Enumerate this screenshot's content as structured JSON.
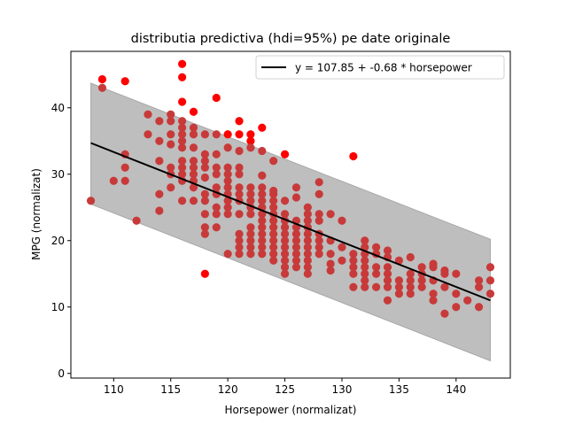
{
  "chart_data": {
    "type": "scatter",
    "title": "distributia predictiva (hdi=95%) pe date originale",
    "xlabel": "Horsepower (normalizat)",
    "ylabel": "MPG (normalizat)",
    "xlim": [
      106.25,
      144.75
    ],
    "ylim": [
      -0.7,
      48.5
    ],
    "xticks": [
      110,
      115,
      120,
      125,
      130,
      135,
      140
    ],
    "yticks": [
      0,
      10,
      20,
      30,
      40
    ],
    "grid": false,
    "legend": {
      "position": "top-right",
      "entries": [
        "y = 107.85 + -0.68 * horsepower"
      ]
    },
    "colors": {
      "points": "#ff0000",
      "band": "#bebebe",
      "band_edge": "#a8a8a8",
      "line": "#000000"
    },
    "regression": {
      "intercept": 107.85,
      "slope": -0.68,
      "x_range": [
        108,
        143
      ],
      "y_start": 34.7,
      "y_end": 11.0
    },
    "hdi_band": {
      "x": [
        108,
        143
      ],
      "upper": [
        43.7,
        20.2
      ],
      "lower": [
        25.5,
        1.9
      ]
    },
    "points": [
      {
        "x": 108,
        "y": 26
      },
      {
        "x": 109,
        "y": 43
      },
      {
        "x": 109,
        "y": 44.3
      },
      {
        "x": 110,
        "y": 29
      },
      {
        "x": 111,
        "y": 44
      },
      {
        "x": 111,
        "y": 33
      },
      {
        "x": 111,
        "y": 31
      },
      {
        "x": 111,
        "y": 29
      },
      {
        "x": 112,
        "y": 23
      },
      {
        "x": 113,
        "y": 39
      },
      {
        "x": 113,
        "y": 36
      },
      {
        "x": 114,
        "y": 38
      },
      {
        "x": 114,
        "y": 35
      },
      {
        "x": 114,
        "y": 32
      },
      {
        "x": 114,
        "y": 27
      },
      {
        "x": 114,
        "y": 24.5
      },
      {
        "x": 115,
        "y": 39
      },
      {
        "x": 115,
        "y": 38
      },
      {
        "x": 115,
        "y": 36
      },
      {
        "x": 115,
        "y": 34.5
      },
      {
        "x": 115,
        "y": 31
      },
      {
        "x": 115,
        "y": 30
      },
      {
        "x": 115,
        "y": 28
      },
      {
        "x": 116,
        "y": 46.6
      },
      {
        "x": 116,
        "y": 44.6
      },
      {
        "x": 116,
        "y": 40.9
      },
      {
        "x": 116,
        "y": 38
      },
      {
        "x": 116,
        "y": 37
      },
      {
        "x": 116,
        "y": 36
      },
      {
        "x": 116,
        "y": 35
      },
      {
        "x": 116,
        "y": 34
      },
      {
        "x": 116,
        "y": 32
      },
      {
        "x": 116,
        "y": 31
      },
      {
        "x": 116,
        "y": 30
      },
      {
        "x": 116,
        "y": 29
      },
      {
        "x": 116,
        "y": 26
      },
      {
        "x": 117,
        "y": 39.4
      },
      {
        "x": 117,
        "y": 37
      },
      {
        "x": 117,
        "y": 36
      },
      {
        "x": 117,
        "y": 34
      },
      {
        "x": 117,
        "y": 32
      },
      {
        "x": 117,
        "y": 31
      },
      {
        "x": 117,
        "y": 30
      },
      {
        "x": 117,
        "y": 29
      },
      {
        "x": 117,
        "y": 28
      },
      {
        "x": 117,
        "y": 26
      },
      {
        "x": 118,
        "y": 36
      },
      {
        "x": 118,
        "y": 33
      },
      {
        "x": 118,
        "y": 32
      },
      {
        "x": 118,
        "y": 31
      },
      {
        "x": 118,
        "y": 29.5
      },
      {
        "x": 118,
        "y": 27
      },
      {
        "x": 118,
        "y": 26
      },
      {
        "x": 118,
        "y": 24
      },
      {
        "x": 118,
        "y": 22
      },
      {
        "x": 118,
        "y": 21
      },
      {
        "x": 118,
        "y": 15
      },
      {
        "x": 119,
        "y": 41.5
      },
      {
        "x": 119,
        "y": 36
      },
      {
        "x": 119,
        "y": 33
      },
      {
        "x": 119,
        "y": 31
      },
      {
        "x": 119,
        "y": 30
      },
      {
        "x": 119,
        "y": 28
      },
      {
        "x": 119,
        "y": 27
      },
      {
        "x": 119,
        "y": 25
      },
      {
        "x": 119,
        "y": 24
      },
      {
        "x": 119,
        "y": 22
      },
      {
        "x": 120,
        "y": 36
      },
      {
        "x": 120,
        "y": 34
      },
      {
        "x": 120,
        "y": 31
      },
      {
        "x": 120,
        "y": 30
      },
      {
        "x": 120,
        "y": 29
      },
      {
        "x": 120,
        "y": 28
      },
      {
        "x": 120,
        "y": 27
      },
      {
        "x": 120,
        "y": 26
      },
      {
        "x": 120,
        "y": 25
      },
      {
        "x": 120,
        "y": 24
      },
      {
        "x": 120,
        "y": 18
      },
      {
        "x": 121,
        "y": 38
      },
      {
        "x": 121,
        "y": 36
      },
      {
        "x": 121,
        "y": 33.5
      },
      {
        "x": 121,
        "y": 31
      },
      {
        "x": 121,
        "y": 30
      },
      {
        "x": 121,
        "y": 28
      },
      {
        "x": 121,
        "y": 27
      },
      {
        "x": 121,
        "y": 26
      },
      {
        "x": 121,
        "y": 24
      },
      {
        "x": 121,
        "y": 21
      },
      {
        "x": 121,
        "y": 20
      },
      {
        "x": 121,
        "y": 19
      },
      {
        "x": 121,
        "y": 18
      },
      {
        "x": 122,
        "y": 36
      },
      {
        "x": 122,
        "y": 35
      },
      {
        "x": 122,
        "y": 34
      },
      {
        "x": 122,
        "y": 28
      },
      {
        "x": 122,
        "y": 27
      },
      {
        "x": 122,
        "y": 26
      },
      {
        "x": 122,
        "y": 25
      },
      {
        "x": 122,
        "y": 24
      },
      {
        "x": 122,
        "y": 22
      },
      {
        "x": 122,
        "y": 21
      },
      {
        "x": 122,
        "y": 20
      },
      {
        "x": 122,
        "y": 19
      },
      {
        "x": 122,
        "y": 18
      },
      {
        "x": 123,
        "y": 37
      },
      {
        "x": 123,
        "y": 33.5
      },
      {
        "x": 123,
        "y": 29.8
      },
      {
        "x": 123,
        "y": 28
      },
      {
        "x": 123,
        "y": 27
      },
      {
        "x": 123,
        "y": 26
      },
      {
        "x": 123,
        "y": 25
      },
      {
        "x": 123,
        "y": 24
      },
      {
        "x": 123,
        "y": 23
      },
      {
        "x": 123,
        "y": 22
      },
      {
        "x": 123,
        "y": 21
      },
      {
        "x": 123,
        "y": 20
      },
      {
        "x": 123,
        "y": 19
      },
      {
        "x": 123,
        "y": 18
      },
      {
        "x": 124,
        "y": 32
      },
      {
        "x": 124,
        "y": 27.5
      },
      {
        "x": 124,
        "y": 27
      },
      {
        "x": 124,
        "y": 26
      },
      {
        "x": 124,
        "y": 25
      },
      {
        "x": 124,
        "y": 24
      },
      {
        "x": 124,
        "y": 23
      },
      {
        "x": 124,
        "y": 22
      },
      {
        "x": 124,
        "y": 21
      },
      {
        "x": 124,
        "y": 20
      },
      {
        "x": 124,
        "y": 19
      },
      {
        "x": 124,
        "y": 18
      },
      {
        "x": 124,
        "y": 17
      },
      {
        "x": 125,
        "y": 33
      },
      {
        "x": 125,
        "y": 26
      },
      {
        "x": 125,
        "y": 24
      },
      {
        "x": 125,
        "y": 23
      },
      {
        "x": 125,
        "y": 22
      },
      {
        "x": 125,
        "y": 21
      },
      {
        "x": 125,
        "y": 20
      },
      {
        "x": 125,
        "y": 19
      },
      {
        "x": 125,
        "y": 18
      },
      {
        "x": 125,
        "y": 17
      },
      {
        "x": 125,
        "y": 16
      },
      {
        "x": 125,
        "y": 15
      },
      {
        "x": 126,
        "y": 28
      },
      {
        "x": 126,
        "y": 26.5
      },
      {
        "x": 126,
        "y": 23
      },
      {
        "x": 126,
        "y": 22
      },
      {
        "x": 126,
        "y": 21
      },
      {
        "x": 126,
        "y": 20
      },
      {
        "x": 126,
        "y": 19
      },
      {
        "x": 126,
        "y": 18
      },
      {
        "x": 126,
        "y": 17
      },
      {
        "x": 126,
        "y": 16
      },
      {
        "x": 127,
        "y": 25
      },
      {
        "x": 127,
        "y": 24
      },
      {
        "x": 127,
        "y": 23
      },
      {
        "x": 127,
        "y": 22
      },
      {
        "x": 127,
        "y": 21
      },
      {
        "x": 127,
        "y": 20
      },
      {
        "x": 127,
        "y": 19
      },
      {
        "x": 127,
        "y": 18
      },
      {
        "x": 127,
        "y": 17
      },
      {
        "x": 127,
        "y": 16
      },
      {
        "x": 127,
        "y": 15
      },
      {
        "x": 128,
        "y": 28.8
      },
      {
        "x": 128,
        "y": 27
      },
      {
        "x": 128,
        "y": 24
      },
      {
        "x": 128,
        "y": 23
      },
      {
        "x": 128,
        "y": 21
      },
      {
        "x": 128,
        "y": 20
      },
      {
        "x": 128,
        "y": 19
      },
      {
        "x": 128,
        "y": 18
      },
      {
        "x": 129,
        "y": 24
      },
      {
        "x": 129,
        "y": 20
      },
      {
        "x": 129,
        "y": 18
      },
      {
        "x": 129,
        "y": 16.5
      },
      {
        "x": 129,
        "y": 15.5
      },
      {
        "x": 130,
        "y": 23
      },
      {
        "x": 130,
        "y": 19
      },
      {
        "x": 130,
        "y": 17
      },
      {
        "x": 131,
        "y": 32.7
      },
      {
        "x": 131,
        "y": 18
      },
      {
        "x": 131,
        "y": 17
      },
      {
        "x": 131,
        "y": 16
      },
      {
        "x": 131,
        "y": 15
      },
      {
        "x": 131,
        "y": 13
      },
      {
        "x": 132,
        "y": 20
      },
      {
        "x": 132,
        "y": 19
      },
      {
        "x": 132,
        "y": 18
      },
      {
        "x": 132,
        "y": 17
      },
      {
        "x": 132,
        "y": 16
      },
      {
        "x": 132,
        "y": 15
      },
      {
        "x": 132,
        "y": 14
      },
      {
        "x": 132,
        "y": 13
      },
      {
        "x": 133,
        "y": 19
      },
      {
        "x": 133,
        "y": 18
      },
      {
        "x": 133,
        "y": 16
      },
      {
        "x": 133,
        "y": 15
      },
      {
        "x": 133,
        "y": 13
      },
      {
        "x": 134,
        "y": 18.5
      },
      {
        "x": 134,
        "y": 17.5
      },
      {
        "x": 134,
        "y": 16
      },
      {
        "x": 134,
        "y": 15
      },
      {
        "x": 134,
        "y": 14
      },
      {
        "x": 134,
        "y": 13
      },
      {
        "x": 134,
        "y": 11
      },
      {
        "x": 135,
        "y": 17
      },
      {
        "x": 135,
        "y": 14
      },
      {
        "x": 135,
        "y": 13
      },
      {
        "x": 135,
        "y": 12
      },
      {
        "x": 136,
        "y": 17.5
      },
      {
        "x": 136,
        "y": 15
      },
      {
        "x": 136,
        "y": 14
      },
      {
        "x": 136,
        "y": 13
      },
      {
        "x": 136,
        "y": 12
      },
      {
        "x": 137,
        "y": 16
      },
      {
        "x": 137,
        "y": 15
      },
      {
        "x": 137,
        "y": 14
      },
      {
        "x": 137,
        "y": 13
      },
      {
        "x": 138,
        "y": 16.5
      },
      {
        "x": 138,
        "y": 16
      },
      {
        "x": 138,
        "y": 14
      },
      {
        "x": 138,
        "y": 12
      },
      {
        "x": 138,
        "y": 11
      },
      {
        "x": 139,
        "y": 15.5
      },
      {
        "x": 139,
        "y": 15
      },
      {
        "x": 139,
        "y": 13
      },
      {
        "x": 139,
        "y": 9
      },
      {
        "x": 140,
        "y": 15
      },
      {
        "x": 140,
        "y": 12
      },
      {
        "x": 140,
        "y": 10
      },
      {
        "x": 141,
        "y": 11
      },
      {
        "x": 142,
        "y": 14
      },
      {
        "x": 142,
        "y": 13
      },
      {
        "x": 142,
        "y": 10
      },
      {
        "x": 143,
        "y": 16
      },
      {
        "x": 143,
        "y": 14
      },
      {
        "x": 143,
        "y": 12
      }
    ]
  }
}
